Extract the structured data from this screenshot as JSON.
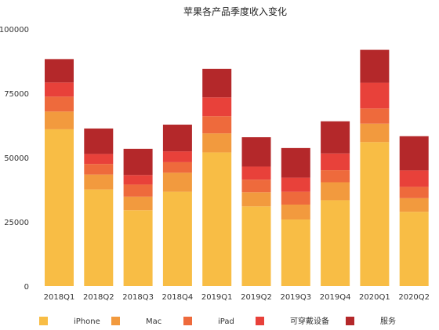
{
  "chart_data": {
    "type": "bar",
    "stacked": true,
    "title": "苹果各产品季度收入变化",
    "xlabel": "",
    "ylabel": "",
    "ylim": [
      0,
      100000
    ],
    "yticks": [
      0,
      25000,
      50000,
      75000,
      100000
    ],
    "ytick_labels": [
      "0",
      "25000",
      "50000",
      "75000",
      "100000"
    ],
    "grid": false,
    "legend_position": "bottom",
    "categories": [
      "2018Q1",
      "2018Q2",
      "2018Q3",
      "2018Q4",
      "2019Q1",
      "2019Q2",
      "2019Q3",
      "2019Q4",
      "2020Q1",
      "2020Q2"
    ],
    "series": [
      {
        "name": "iPhone",
        "color": "#F8BD45",
        "values": [
          61000,
          37600,
          29500,
          36700,
          52000,
          31000,
          25900,
          33400,
          56000,
          28900
        ]
      },
      {
        "name": "Mac",
        "color": "#F29A3E",
        "values": [
          6900,
          5800,
          5300,
          7400,
          7400,
          5500,
          5800,
          7000,
          7200,
          5300
        ]
      },
      {
        "name": "iPad",
        "color": "#EE6A3C",
        "values": [
          5800,
          4100,
          4700,
          4100,
          6700,
          4900,
          5000,
          4700,
          5900,
          4400
        ]
      },
      {
        "name": "可穿戴设备",
        "color": "#E8413A",
        "values": [
          5500,
          3900,
          3700,
          4200,
          7300,
          5100,
          5500,
          6500,
          10000,
          6400
        ]
      },
      {
        "name": "服务",
        "color": "#B4282A",
        "values": [
          9100,
          9900,
          10200,
          10400,
          11100,
          11400,
          11500,
          12500,
          12800,
          13300
        ]
      }
    ]
  }
}
